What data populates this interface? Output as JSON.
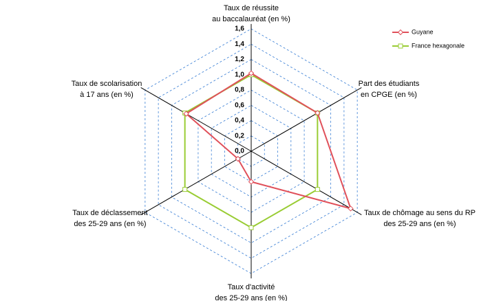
{
  "chart_data": {
    "type": "radar",
    "axes": [
      [
        "Taux de réussite",
        "au baccalauréat (en %)"
      ],
      [
        "Part des étudiants",
        "en CPGE (en %)"
      ],
      [
        "Taux de chômage au sens du RP",
        "des 25-29 ans (en %)"
      ],
      [
        "Taux d'activité",
        "des 25-29 ans (en %)"
      ],
      [
        "Taux de déclassement",
        "des 25-29 ans (en %)"
      ],
      [
        "Taux de scolarisation",
        "à 17 ans (en %)"
      ]
    ],
    "rlim": [
      0,
      1.6
    ],
    "rticks": [
      {
        "value": 0,
        "label": "0,0"
      },
      {
        "value": 0.2,
        "label": "0,2"
      },
      {
        "value": 0.4,
        "label": "0,4"
      },
      {
        "value": 0.6,
        "label": "0,6"
      },
      {
        "value": 0.8,
        "label": "0,8"
      },
      {
        "value": 1.0,
        "label": "1,0"
      },
      {
        "value": 1.2,
        "label": "1,2"
      },
      {
        "value": 1.4,
        "label": "1,4"
      },
      {
        "value": 1.6,
        "label": "1,6"
      }
    ],
    "grid": true,
    "legend": "top-right",
    "series": [
      {
        "name": "Guyane",
        "color": "#e0505a",
        "marker": "diamond",
        "values": [
          1.02,
          1.0,
          1.5,
          0.4,
          0.2,
          0.98
        ]
      },
      {
        "name": "France hexagonale",
        "color": "#99cc33",
        "marker": "square",
        "values": [
          1.0,
          1.0,
          1.0,
          1.0,
          1.0,
          1.0
        ]
      }
    ]
  }
}
